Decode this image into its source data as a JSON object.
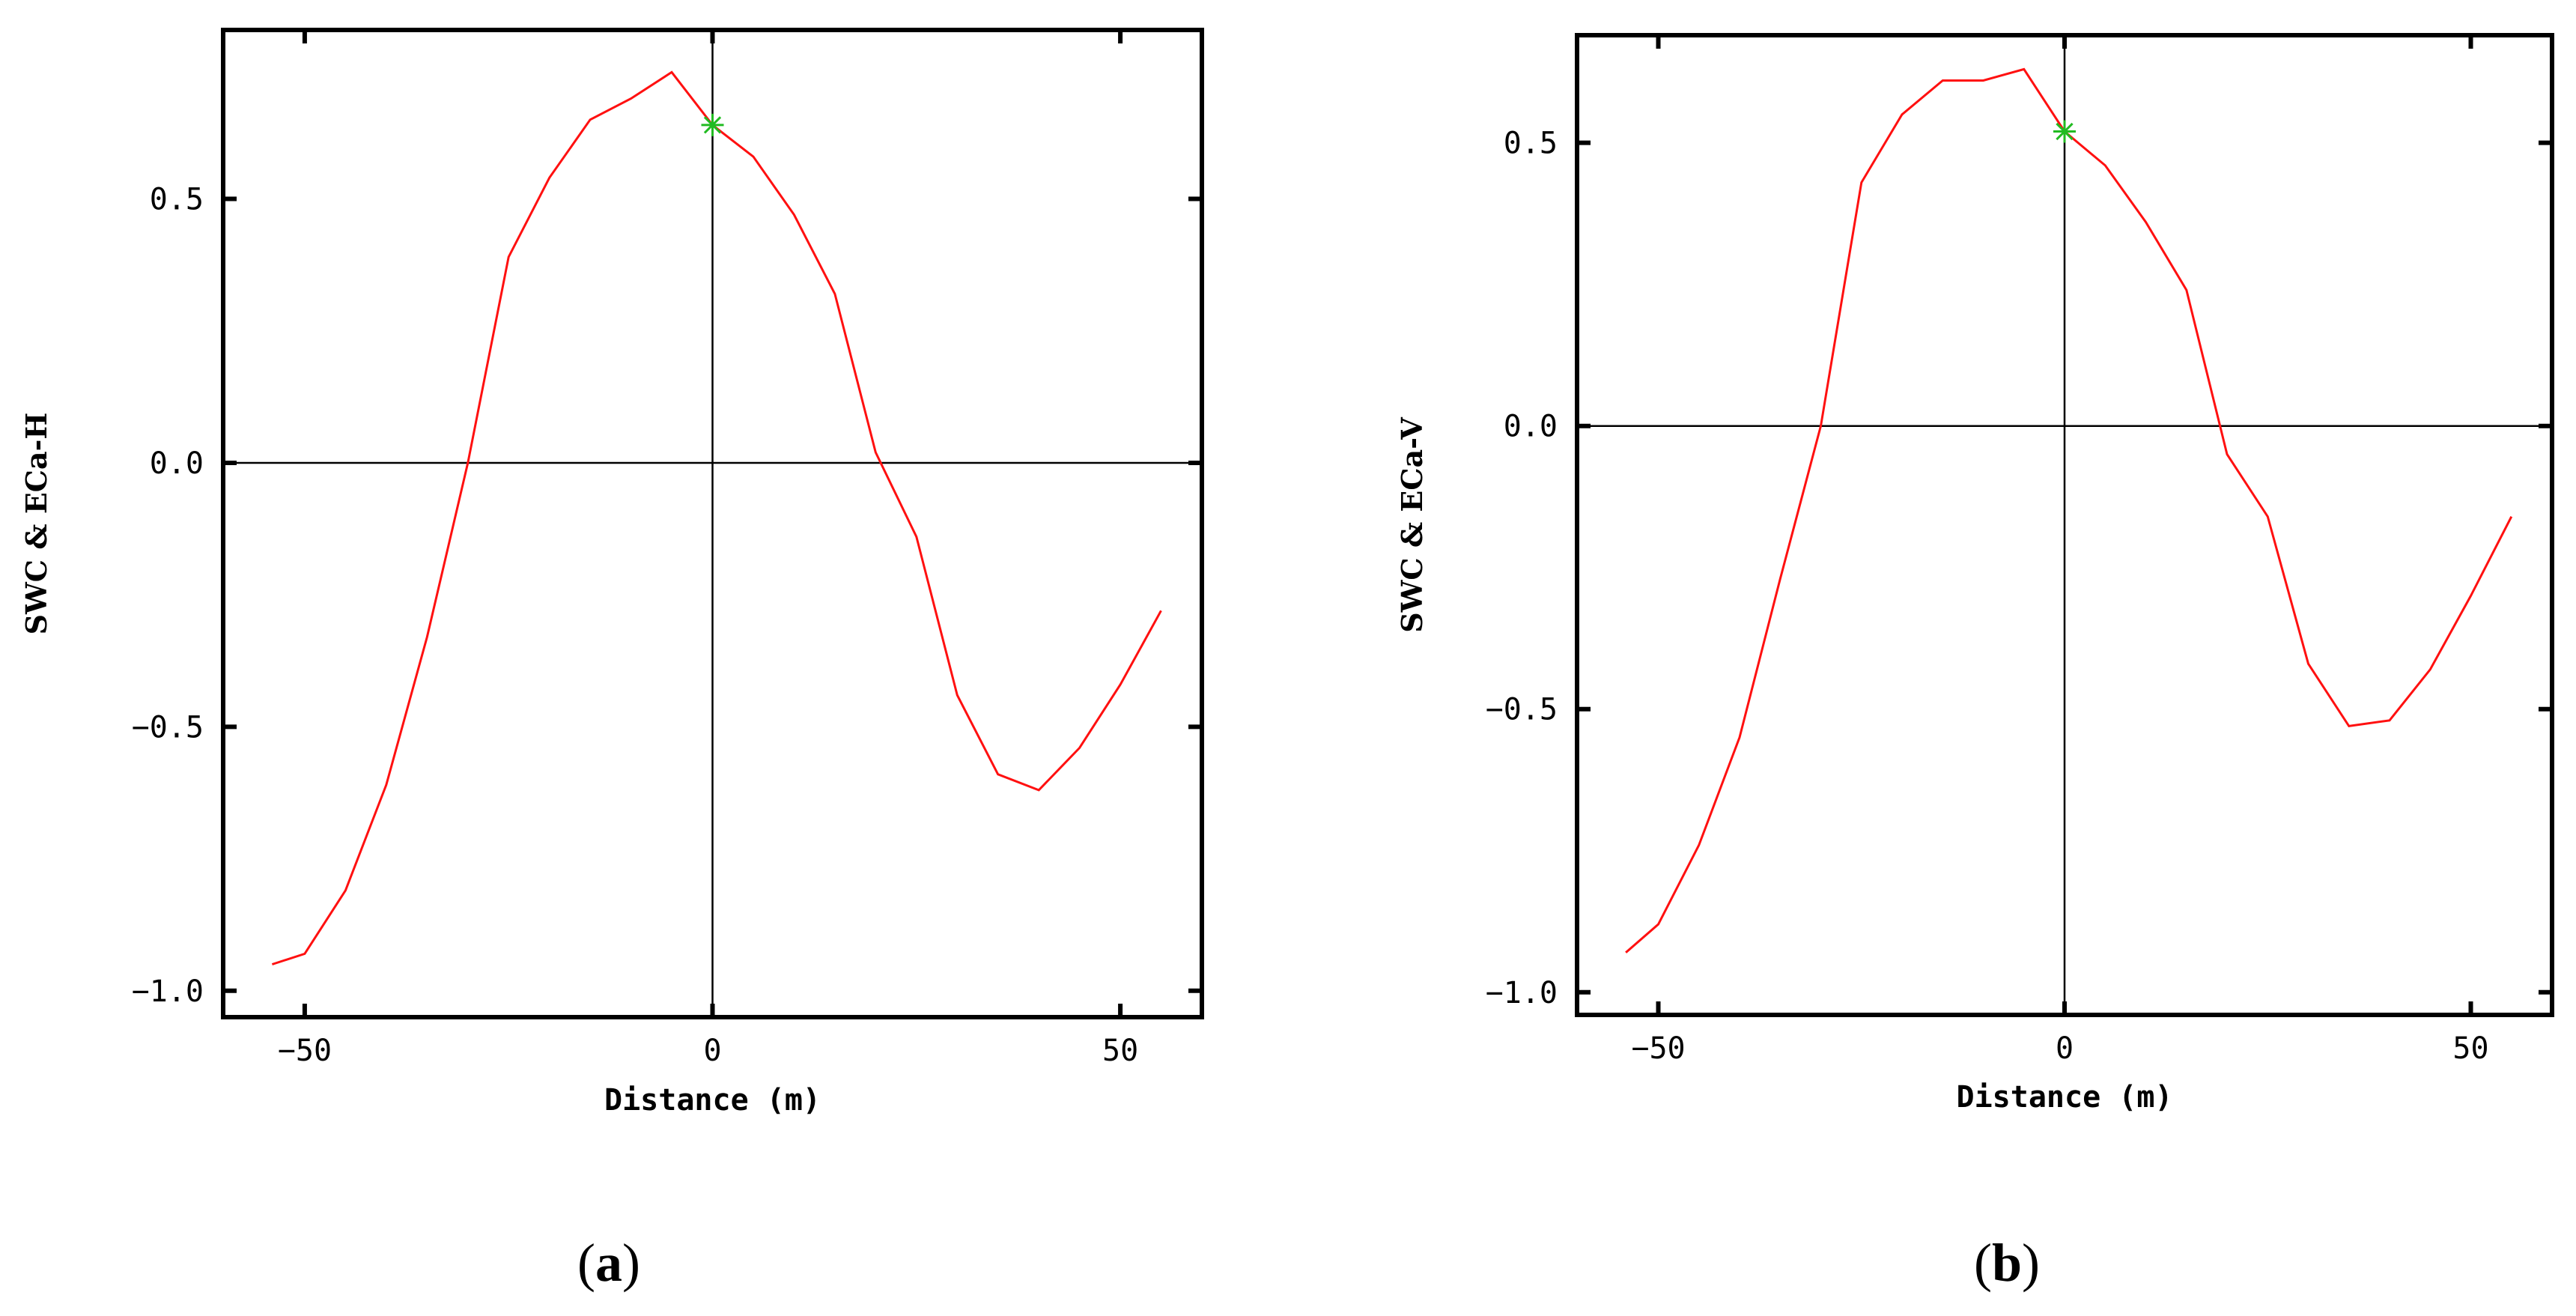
{
  "chart_data": [
    {
      "type": "line",
      "panel_label": "a",
      "xlabel": "Distance (m)",
      "ylabel": "SWC & ECa-H",
      "xlim": [
        -60,
        60
      ],
      "ylim": [
        -1.05,
        0.82
      ],
      "xticks": [
        -50,
        0,
        50
      ],
      "xtick_labels": [
        "−50",
        "0",
        "50"
      ],
      "yticks": [
        -1.0,
        -0.5,
        0.0,
        0.5
      ],
      "ytick_labels": [
        "−1.0",
        "−0.5",
        "0.0",
        "0.5"
      ],
      "grid": false,
      "zero_lines": true,
      "line_color": "#ff1010",
      "marker_color": "#22bb22",
      "marker": {
        "x": 0,
        "y": 0.64
      },
      "series": [
        {
          "x": [
            -54,
            -50,
            -45,
            -40,
            -35,
            -30,
            -25,
            -20,
            -15,
            -10,
            -5,
            0,
            5,
            10,
            15,
            20,
            25,
            30,
            35,
            40,
            45,
            50,
            55
          ],
          "values": [
            -0.95,
            -0.93,
            -0.81,
            -0.61,
            -0.33,
            0.0,
            0.39,
            0.54,
            0.65,
            0.69,
            0.74,
            0.64,
            0.58,
            0.47,
            0.32,
            0.02,
            -0.14,
            -0.44,
            -0.59,
            -0.62,
            -0.54,
            -0.42,
            -0.28
          ]
        }
      ]
    },
    {
      "type": "line",
      "panel_label": "b",
      "xlabel": "Distance (m)",
      "ylabel": "SWC & ECa-V",
      "xlim": [
        -60,
        60
      ],
      "ylim": [
        -1.04,
        0.69
      ],
      "xticks": [
        -50,
        0,
        50
      ],
      "xtick_labels": [
        "−50",
        "0",
        "50"
      ],
      "yticks": [
        -1.0,
        -0.5,
        0.0,
        0.5
      ],
      "ytick_labels": [
        "−1.0",
        "−0.5",
        "0.0",
        "0.5"
      ],
      "grid": false,
      "zero_lines": true,
      "line_color": "#ff1010",
      "marker_color": "#22bb22",
      "marker": {
        "x": 0,
        "y": 0.52
      },
      "series": [
        {
          "x": [
            -54,
            -50,
            -45,
            -40,
            -35,
            -30,
            -25,
            -20,
            -15,
            -10,
            -5,
            0,
            5,
            10,
            15,
            20,
            25,
            30,
            35,
            40,
            45,
            50,
            55
          ],
          "values": [
            -0.93,
            -0.88,
            -0.74,
            -0.55,
            -0.27,
            0.0,
            0.43,
            0.55,
            0.61,
            0.61,
            0.63,
            0.52,
            0.46,
            0.36,
            0.24,
            -0.05,
            -0.16,
            -0.42,
            -0.53,
            -0.52,
            -0.43,
            -0.3,
            -0.16
          ]
        }
      ]
    }
  ]
}
